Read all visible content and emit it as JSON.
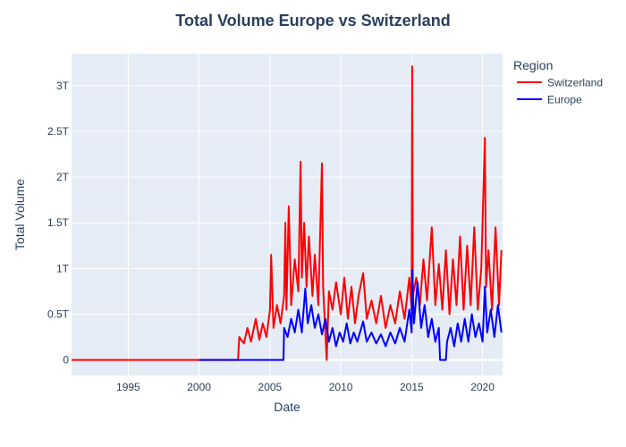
{
  "chart_data": {
    "type": "line",
    "title": "Total Volume Europe vs Switzerland",
    "xlabel": "Date",
    "ylabel": "Total Volume",
    "legend_title": "Region",
    "legend_position": "top-right",
    "grid": true,
    "xlim": [
      "1991-01-01",
      "2021-06-01"
    ],
    "ylim": [
      -0.17,
      3.35
    ],
    "y_unit_note": "values in trillions (T)",
    "x_ticks": [
      "1995",
      "2000",
      "2005",
      "2010",
      "2015",
      "2020"
    ],
    "x_tick_dates": [
      "1995-01-01",
      "2000-01-01",
      "2005-01-01",
      "2010-01-01",
      "2015-01-01",
      "2020-01-01"
    ],
    "y_ticks": [
      0,
      0.5,
      1,
      1.5,
      2,
      2.5,
      3
    ],
    "y_tick_labels": [
      "0",
      "0.5T",
      "1T",
      "1.5T",
      "2T",
      "2.5T",
      "3T"
    ],
    "series": [
      {
        "name": "Switzerland",
        "color": "#ff0000",
        "points": [
          [
            "1991-01-01",
            0
          ],
          [
            "2002-10-01",
            0
          ],
          [
            "2002-11-01",
            0.25
          ],
          [
            "2003-03-01",
            0.18
          ],
          [
            "2003-06-01",
            0.35
          ],
          [
            "2003-09-01",
            0.2
          ],
          [
            "2004-01-01",
            0.45
          ],
          [
            "2004-04-01",
            0.22
          ],
          [
            "2004-07-01",
            0.4
          ],
          [
            "2004-10-01",
            0.25
          ],
          [
            "2005-01-01",
            0.55
          ],
          [
            "2005-02-01",
            1.15
          ],
          [
            "2005-04-01",
            0.35
          ],
          [
            "2005-07-01",
            0.6
          ],
          [
            "2005-10-01",
            0.4
          ],
          [
            "2006-01-01",
            0.7
          ],
          [
            "2006-02-01",
            1.5
          ],
          [
            "2006-03-01",
            0.55
          ],
          [
            "2006-05-01",
            1.68
          ],
          [
            "2006-07-01",
            0.6
          ],
          [
            "2006-10-01",
            1.1
          ],
          [
            "2007-01-01",
            0.75
          ],
          [
            "2007-03-01",
            2.17
          ],
          [
            "2007-04-01",
            0.9
          ],
          [
            "2007-06-01",
            1.5
          ],
          [
            "2007-08-01",
            0.8
          ],
          [
            "2007-10-01",
            1.35
          ],
          [
            "2008-01-01",
            0.7
          ],
          [
            "2008-03-01",
            1.15
          ],
          [
            "2008-06-01",
            0.6
          ],
          [
            "2008-09-01",
            2.15
          ],
          [
            "2008-10-01",
            0.8
          ],
          [
            "2009-01-01",
            0.0
          ],
          [
            "2009-03-01",
            0.75
          ],
          [
            "2009-06-01",
            0.55
          ],
          [
            "2009-09-01",
            0.85
          ],
          [
            "2010-01-01",
            0.5
          ],
          [
            "2010-04-01",
            0.9
          ],
          [
            "2010-07-01",
            0.45
          ],
          [
            "2010-10-01",
            0.8
          ],
          [
            "2011-01-01",
            0.4
          ],
          [
            "2011-04-01",
            0.7
          ],
          [
            "2011-08-01",
            0.95
          ],
          [
            "2011-11-01",
            0.45
          ],
          [
            "2012-03-01",
            0.65
          ],
          [
            "2012-07-01",
            0.4
          ],
          [
            "2012-11-01",
            0.7
          ],
          [
            "2013-03-01",
            0.35
          ],
          [
            "2013-07-01",
            0.6
          ],
          [
            "2013-11-01",
            0.4
          ],
          [
            "2014-03-01",
            0.75
          ],
          [
            "2014-07-01",
            0.45
          ],
          [
            "2014-11-01",
            0.9
          ],
          [
            "2015-01-01",
            0.55
          ],
          [
            "2015-01-15",
            3.21
          ],
          [
            "2015-02-01",
            0.7
          ],
          [
            "2015-05-01",
            0.9
          ],
          [
            "2015-08-01",
            0.6
          ],
          [
            "2015-11-01",
            1.1
          ],
          [
            "2016-02-01",
            0.65
          ],
          [
            "2016-06-01",
            1.45
          ],
          [
            "2016-09-01",
            0.6
          ],
          [
            "2016-12-01",
            1.05
          ],
          [
            "2017-03-01",
            0.55
          ],
          [
            "2017-06-01",
            1.2
          ],
          [
            "2017-09-01",
            0.5
          ],
          [
            "2017-12-01",
            1.1
          ],
          [
            "2018-03-01",
            0.6
          ],
          [
            "2018-06-01",
            1.35
          ],
          [
            "2018-09-01",
            0.55
          ],
          [
            "2018-12-01",
            1.25
          ],
          [
            "2019-03-01",
            0.6
          ],
          [
            "2019-06-01",
            1.45
          ],
          [
            "2019-09-01",
            0.55
          ],
          [
            "2019-12-01",
            1.0
          ],
          [
            "2020-03-01",
            2.43
          ],
          [
            "2020-04-01",
            0.8
          ],
          [
            "2020-06-01",
            1.2
          ],
          [
            "2020-09-01",
            0.55
          ],
          [
            "2020-12-01",
            1.45
          ],
          [
            "2021-03-01",
            0.6
          ],
          [
            "2021-05-01",
            1.2
          ]
        ]
      },
      {
        "name": "Europe",
        "color": "#0000ff",
        "points": [
          [
            "2000-01-01",
            0
          ],
          [
            "2005-12-15",
            0
          ],
          [
            "2006-01-01",
            0.35
          ],
          [
            "2006-04-01",
            0.25
          ],
          [
            "2006-07-01",
            0.45
          ],
          [
            "2006-10-01",
            0.3
          ],
          [
            "2007-01-01",
            0.55
          ],
          [
            "2007-04-01",
            0.3
          ],
          [
            "2007-07-01",
            0.78
          ],
          [
            "2007-09-01",
            0.4
          ],
          [
            "2007-12-01",
            0.6
          ],
          [
            "2008-03-01",
            0.35
          ],
          [
            "2008-06-01",
            0.5
          ],
          [
            "2008-09-01",
            0.28
          ],
          [
            "2008-12-01",
            0.45
          ],
          [
            "2009-03-01",
            0.2
          ],
          [
            "2009-06-01",
            0.35
          ],
          [
            "2009-09-01",
            0.15
          ],
          [
            "2009-12-01",
            0.3
          ],
          [
            "2010-03-01",
            0.2
          ],
          [
            "2010-06-01",
            0.4
          ],
          [
            "2010-09-01",
            0.18
          ],
          [
            "2010-12-01",
            0.3
          ],
          [
            "2011-03-01",
            0.2
          ],
          [
            "2011-08-01",
            0.42
          ],
          [
            "2011-11-01",
            0.2
          ],
          [
            "2012-03-01",
            0.3
          ],
          [
            "2012-07-01",
            0.18
          ],
          [
            "2012-11-01",
            0.28
          ],
          [
            "2013-03-01",
            0.15
          ],
          [
            "2013-07-01",
            0.3
          ],
          [
            "2013-11-01",
            0.18
          ],
          [
            "2014-03-01",
            0.35
          ],
          [
            "2014-07-01",
            0.2
          ],
          [
            "2014-11-01",
            0.55
          ],
          [
            "2015-01-01",
            0.3
          ],
          [
            "2015-01-15",
            0.98
          ],
          [
            "2015-03-01",
            0.4
          ],
          [
            "2015-06-01",
            0.85
          ],
          [
            "2015-09-01",
            0.35
          ],
          [
            "2015-12-01",
            0.6
          ],
          [
            "2016-03-01",
            0.25
          ],
          [
            "2016-06-01",
            0.45
          ],
          [
            "2016-09-01",
            0.2
          ],
          [
            "2016-12-01",
            0.35
          ],
          [
            "2017-01-01",
            0
          ],
          [
            "2017-06-01",
            0
          ],
          [
            "2017-07-01",
            0.2
          ],
          [
            "2017-10-01",
            0.35
          ],
          [
            "2018-01-01",
            0.15
          ],
          [
            "2018-04-01",
            0.4
          ],
          [
            "2018-07-01",
            0.2
          ],
          [
            "2018-10-01",
            0.45
          ],
          [
            "2019-01-01",
            0.2
          ],
          [
            "2019-04-01",
            0.5
          ],
          [
            "2019-07-01",
            0.25
          ],
          [
            "2019-10-01",
            0.4
          ],
          [
            "2020-01-01",
            0.2
          ],
          [
            "2020-03-01",
            0.8
          ],
          [
            "2020-05-01",
            0.3
          ],
          [
            "2020-08-01",
            0.55
          ],
          [
            "2020-11-01",
            0.25
          ],
          [
            "2021-02-01",
            0.6
          ],
          [
            "2021-05-01",
            0.3
          ]
        ]
      }
    ]
  }
}
